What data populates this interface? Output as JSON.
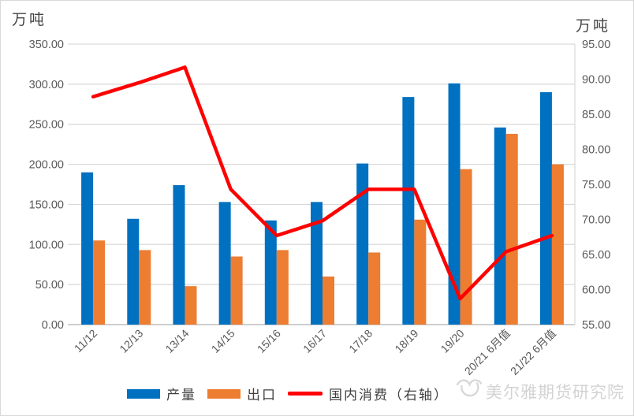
{
  "chart_data": {
    "type": "bar",
    "title": "",
    "categories": [
      "11/12",
      "12/13",
      "13/14",
      "14/15",
      "15/16",
      "16/17",
      "17/18",
      "18/19",
      "19/20",
      "20/21 6月值",
      "21/22 6月值"
    ],
    "series": [
      {
        "name": "产量",
        "type": "bar",
        "axis": "left",
        "color": "#0070C0",
        "values": [
          190,
          132,
          174,
          153,
          130,
          153,
          201,
          284,
          301,
          246,
          290
        ]
      },
      {
        "name": "出口",
        "type": "bar",
        "axis": "left",
        "color": "#ED7D31",
        "values": [
          105,
          93,
          48,
          85,
          93,
          60,
          90,
          131,
          194,
          238,
          200
        ]
      },
      {
        "name": "国内消费（右轴）",
        "type": "line",
        "axis": "right",
        "color": "#FF0000",
        "values": [
          87.5,
          89.5,
          91.7,
          74.3,
          67.7,
          69.8,
          74.3,
          74.3,
          58.7,
          65.4,
          67.7
        ]
      }
    ],
    "left_axis": {
      "title": "万吨",
      "min": 0,
      "max": 350,
      "step": 50,
      "decimals": 2
    },
    "right_axis": {
      "title": "万吨",
      "min": 55,
      "max": 95,
      "step": 5,
      "decimals": 2
    },
    "grid": true,
    "legend_position": "bottom",
    "colors": {
      "grid": "#d9d9d9",
      "baseline": "#bfbfbf",
      "tick_text": "#595959"
    }
  },
  "watermark": {
    "logo": "meierya-logo",
    "text": "美尔雅期货研究院"
  }
}
